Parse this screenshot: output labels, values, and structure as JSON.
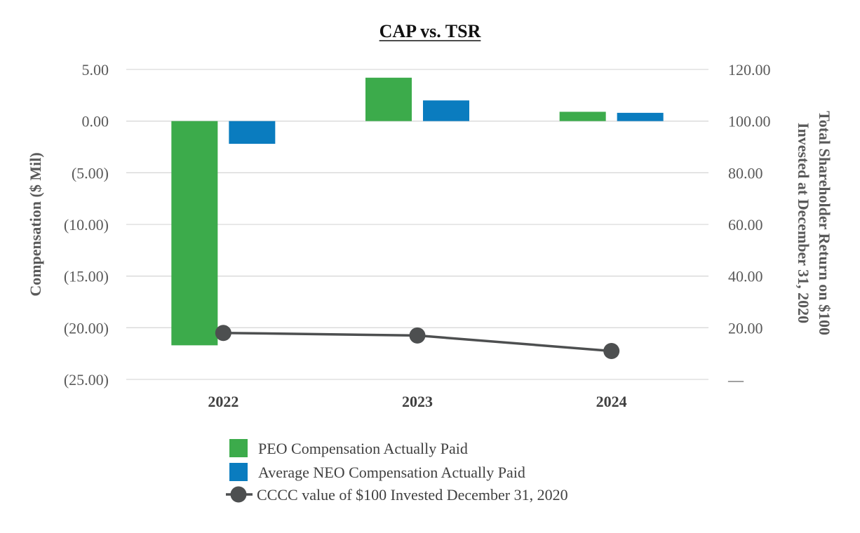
{
  "chart_data": {
    "type": "bar",
    "title": "CAP vs. TSR",
    "categories": [
      "2022",
      "2023",
      "2024"
    ],
    "series": [
      {
        "name": "PEO Compensation Actually Paid",
        "axis": "left",
        "kind": "bar",
        "color": "#3cab4b",
        "values": [
          -21.7,
          4.2,
          0.9
        ]
      },
      {
        "name": "Average NEO Compensation Actually Paid",
        "axis": "left",
        "kind": "bar",
        "color": "#0a7cbf",
        "values": [
          -2.2,
          2.0,
          0.8
        ]
      },
      {
        "name": "CCCC value of $100 Invested December 31, 2020",
        "axis": "right",
        "kind": "line",
        "color": "#4d4f50",
        "values": [
          18.0,
          17.0,
          11.0
        ]
      }
    ],
    "ylabel": "Compensation ($ Mil)",
    "y2label_line1": "Total Shareholder Return on $100",
    "y2label_line2": "Invested at December 31, 2020",
    "ylim": [
      -25,
      5
    ],
    "y2lim": [
      0,
      120
    ],
    "yticks": [
      "5.00",
      "0.00",
      "(5.00)",
      "(10.00)",
      "(15.00)",
      "(20.00)",
      "(25.00)"
    ],
    "y2ticks": [
      "120.00",
      "100.00",
      "80.00",
      "60.00",
      "40.00",
      "20.00",
      "—"
    ],
    "grid": true,
    "legend_position": "bottom"
  }
}
